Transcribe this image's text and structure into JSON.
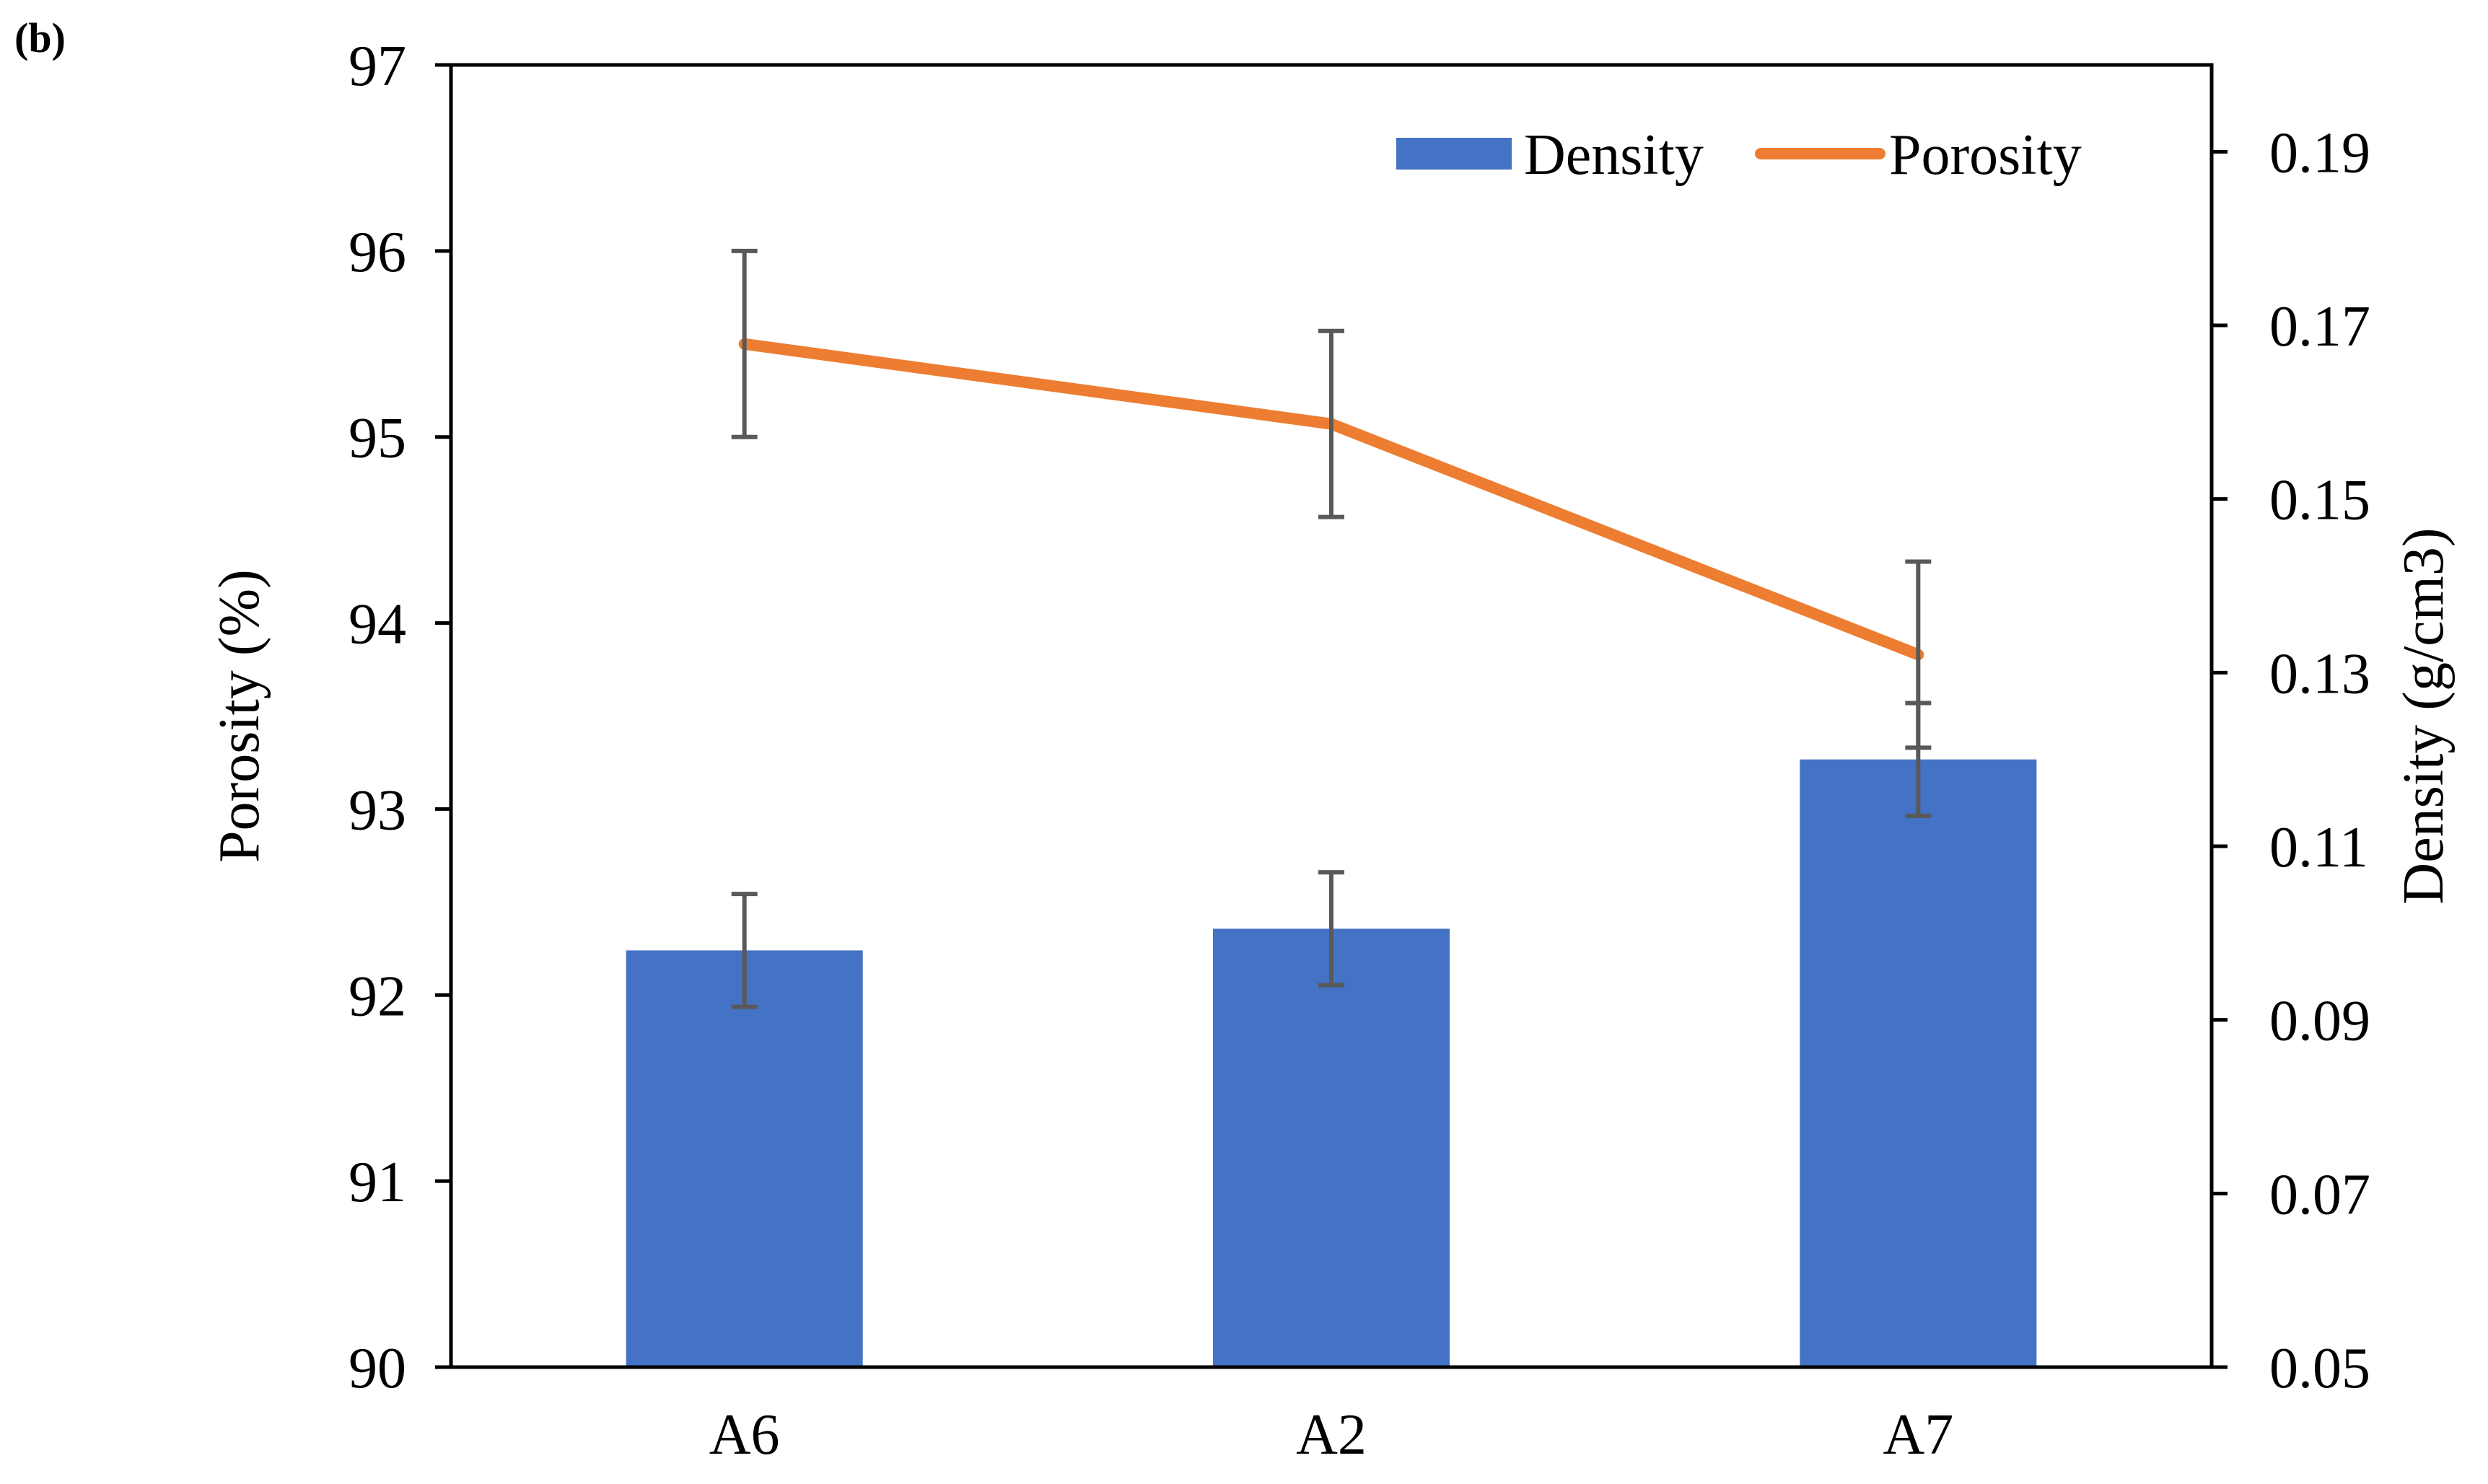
{
  "panel_label": "(b)",
  "chart_data": {
    "type": "bar+line",
    "categories": [
      "A6",
      "A2",
      "A7"
    ],
    "series": [
      {
        "name": "Density",
        "kind": "bar",
        "axis": "right",
        "values": [
          0.098,
          0.1005,
          0.12
        ],
        "error": [
          0.0065,
          0.0065,
          0.0065
        ]
      },
      {
        "name": "Porosity",
        "kind": "line",
        "axis": "left",
        "values": [
          95.5,
          95.07,
          93.83
        ],
        "error": [
          0.5,
          0.5,
          0.5
        ]
      }
    ],
    "y_left": {
      "label": "Porosity (%)",
      "lim": [
        90,
        97
      ],
      "ticks": [
        "90",
        "91",
        "92",
        "93",
        "94",
        "95",
        "96",
        "97"
      ]
    },
    "y_right": {
      "label": "Density (g/cm3)",
      "lim": [
        0.05,
        0.2
      ],
      "ticks": [
        "0.05",
        "0.07",
        "0.09",
        "0.11",
        "0.13",
        "0.15",
        "0.17",
        "0.19"
      ]
    },
    "legend": {
      "position": "top-right",
      "entries": [
        "Density",
        "Porosity"
      ]
    },
    "colors": {
      "bar": "#4472C4",
      "line": "#ED7D31",
      "error": "#595959",
      "axis": "#000000"
    }
  }
}
